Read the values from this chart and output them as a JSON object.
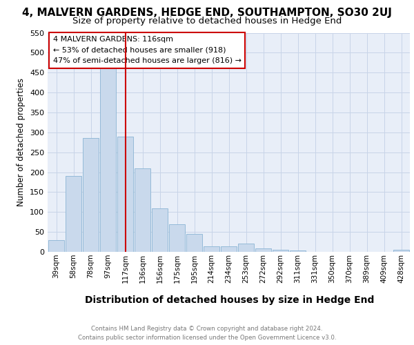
{
  "title": "4, MALVERN GARDENS, HEDGE END, SOUTHAMPTON, SO30 2UJ",
  "subtitle": "Size of property relative to detached houses in Hedge End",
  "xlabel": "Distribution of detached houses by size in Hedge End",
  "ylabel": "Number of detached properties",
  "categories": [
    "39sqm",
    "58sqm",
    "78sqm",
    "97sqm",
    "117sqm",
    "136sqm",
    "156sqm",
    "175sqm",
    "195sqm",
    "214sqm",
    "234sqm",
    "253sqm",
    "272sqm",
    "292sqm",
    "311sqm",
    "331sqm",
    "350sqm",
    "370sqm",
    "389sqm",
    "409sqm",
    "428sqm"
  ],
  "values": [
    30,
    190,
    285,
    460,
    290,
    210,
    110,
    70,
    45,
    13,
    13,
    20,
    8,
    5,
    4,
    0,
    0,
    0,
    0,
    0,
    5
  ],
  "bar_color": "#c9d9ec",
  "bar_edge_color": "#8ab4d4",
  "highlight_bar_index": 4,
  "highlight_line_color": "#cc0000",
  "ylim": [
    0,
    550
  ],
  "yticks": [
    0,
    50,
    100,
    150,
    200,
    250,
    300,
    350,
    400,
    450,
    500,
    550
  ],
  "grid_color": "#c8d4e8",
  "background_color": "#e8eef8",
  "annotation_text": "4 MALVERN GARDENS: 116sqm\n← 53% of detached houses are smaller (918)\n47% of semi-detached houses are larger (816) →",
  "annotation_box_color": "#ffffff",
  "annotation_box_edge": "#cc0000",
  "footer_line1": "Contains HM Land Registry data © Crown copyright and database right 2024.",
  "footer_line2": "Contains public sector information licensed under the Open Government Licence v3.0.",
  "title_fontsize": 11,
  "subtitle_fontsize": 9.5,
  "xlabel_fontsize": 10,
  "ylabel_fontsize": 8.5
}
